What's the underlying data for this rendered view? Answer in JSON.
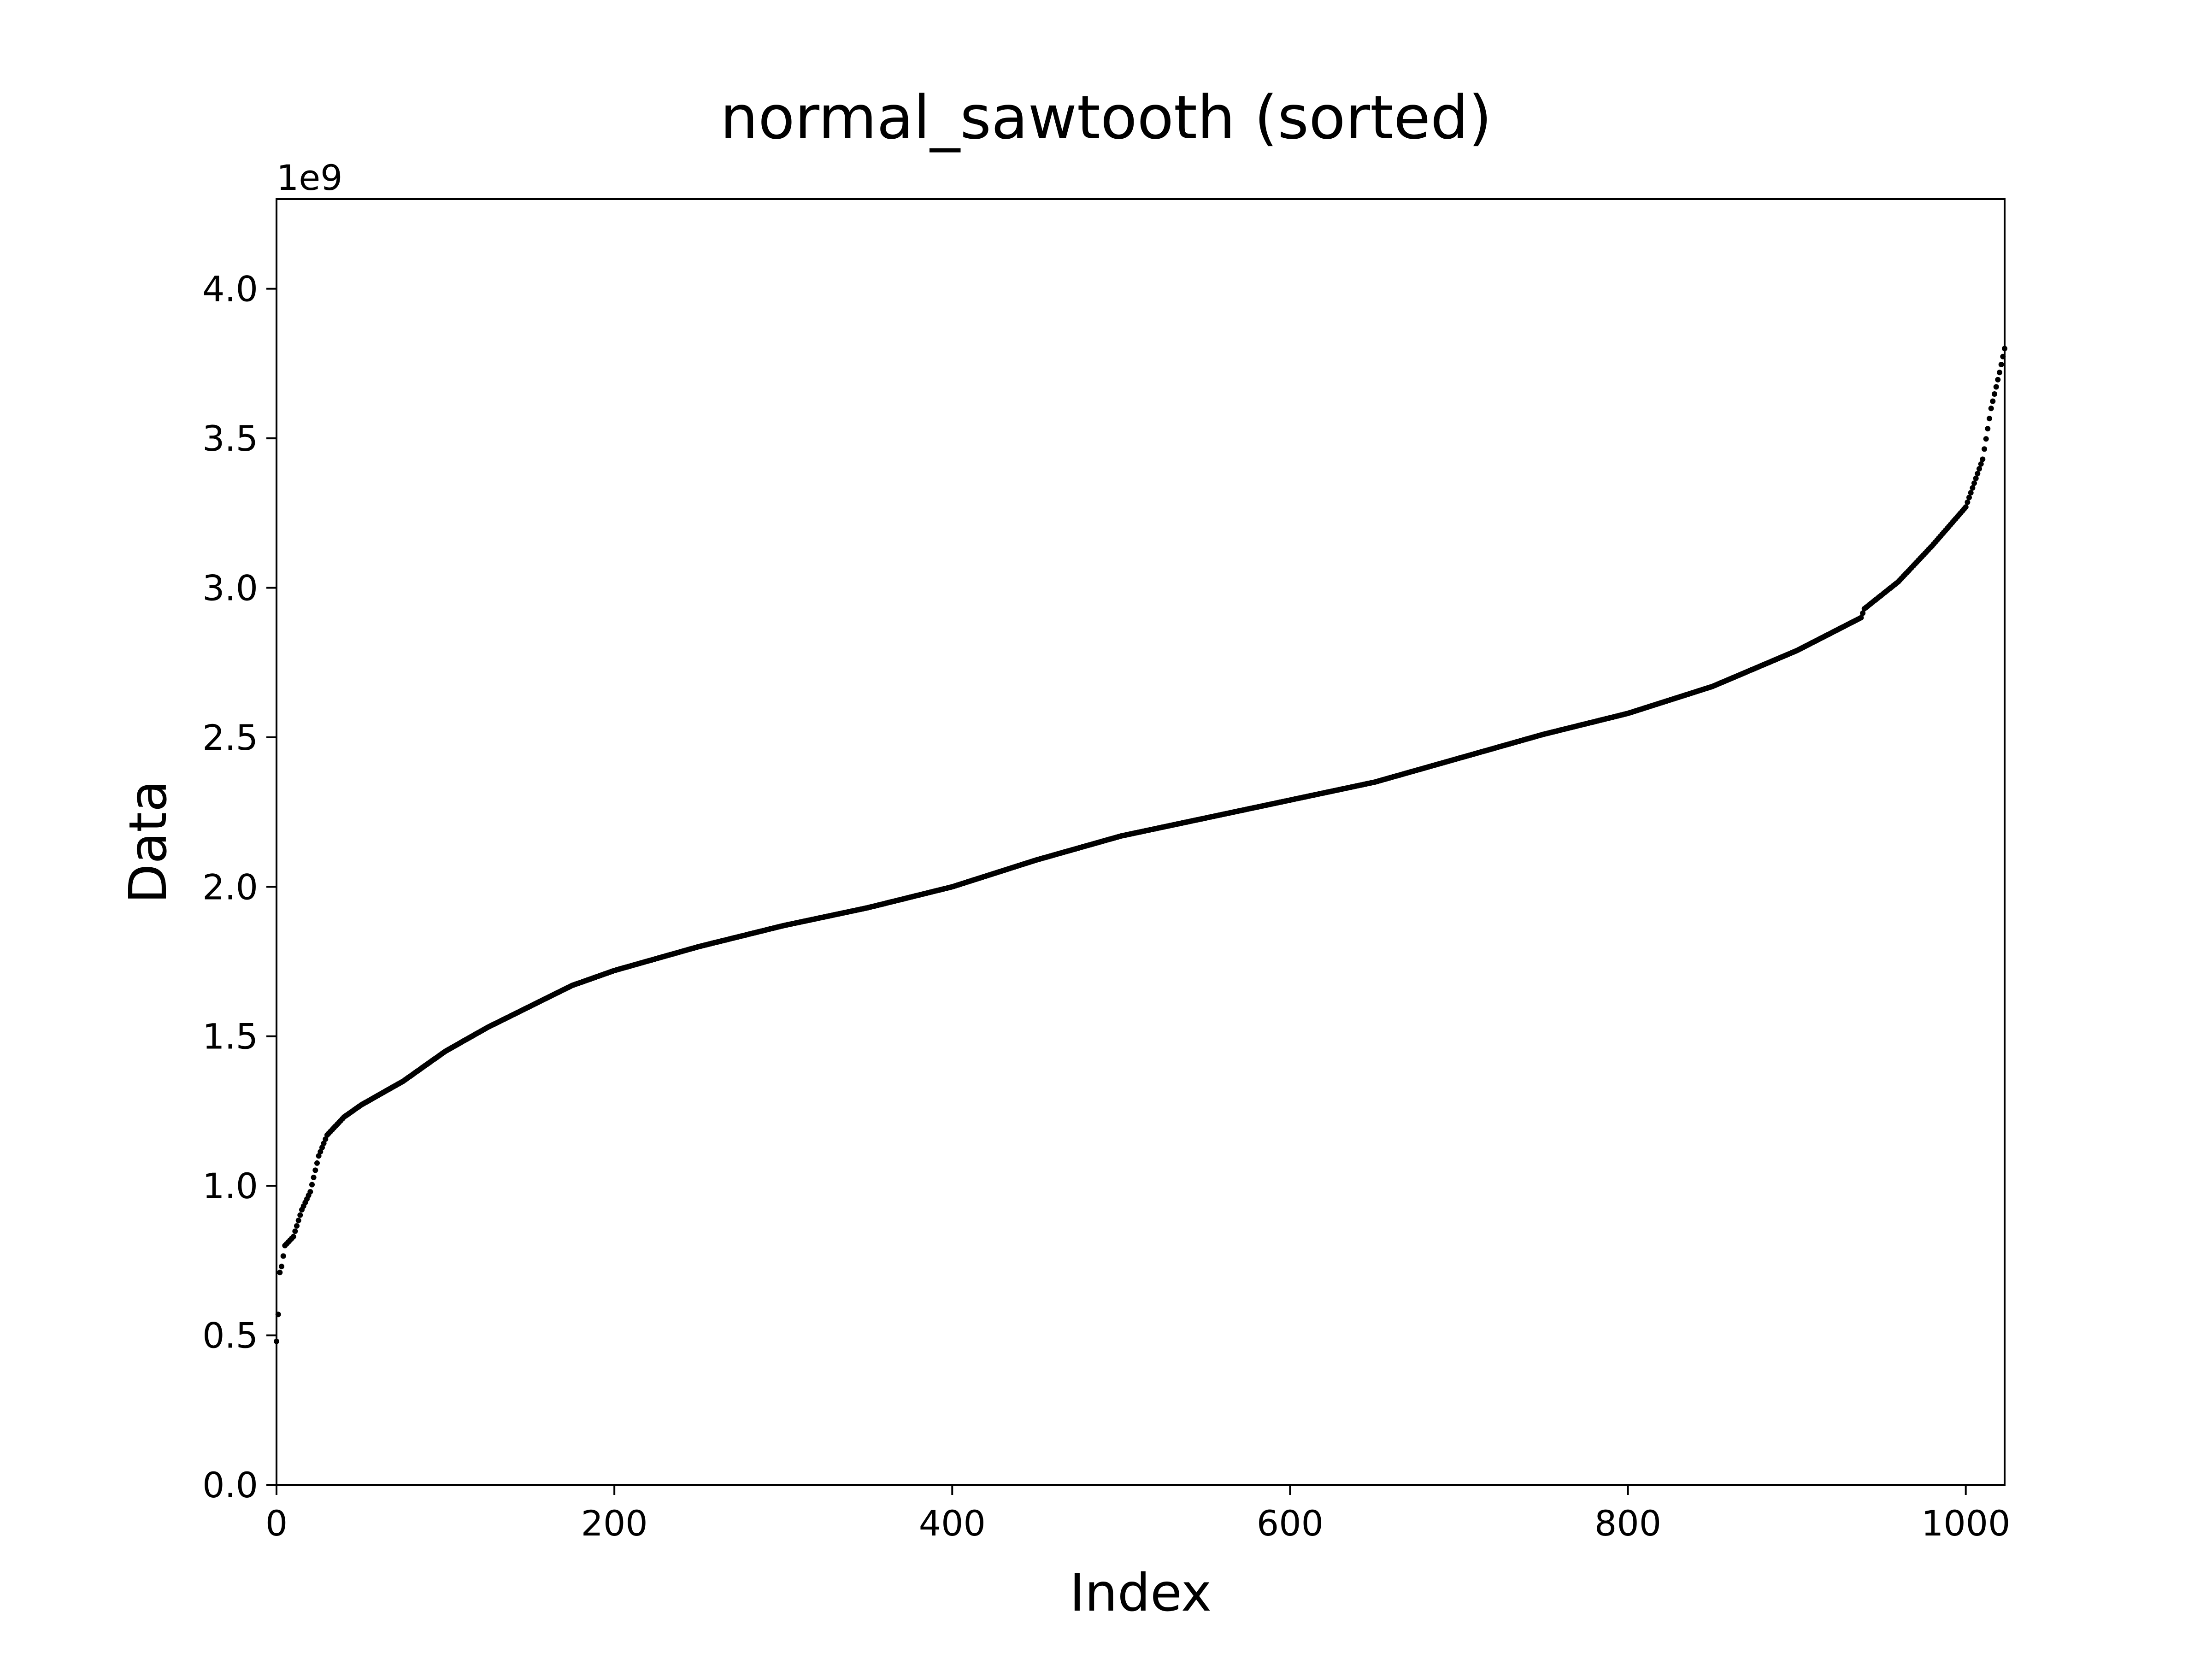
{
  "chart_data": {
    "type": "scatter",
    "title": "normal_sawtooth (sorted)",
    "xlabel": "Index",
    "ylabel": "Data",
    "y_offset_label": "1e9",
    "xlim": [
      0,
      1023
    ],
    "ylim": [
      0,
      4.3
    ],
    "xticks": [
      0,
      200,
      400,
      600,
      800,
      1000
    ],
    "yticks": [
      0.0,
      0.5,
      1.0,
      1.5,
      2.0,
      2.5,
      3.0,
      3.5,
      4.0
    ],
    "xtick_labels": [
      "0",
      "200",
      "400",
      "600",
      "800",
      "1000"
    ],
    "ytick_labels": [
      "0.0",
      "0.5",
      "1.0",
      "1.5",
      "2.0",
      "2.5",
      "3.0",
      "3.5",
      "4.0"
    ],
    "grid": false,
    "marker_color": "#000000",
    "y_unit_multiplier": 1000000000,
    "curve_points": [
      [
        0,
        0.48
      ],
      [
        1,
        0.57
      ],
      [
        2,
        0.71
      ],
      [
        3,
        0.73
      ],
      [
        5,
        0.8
      ],
      [
        10,
        0.83
      ],
      [
        15,
        0.92
      ],
      [
        20,
        0.98
      ],
      [
        25,
        1.1
      ],
      [
        30,
        1.17
      ],
      [
        40,
        1.23
      ],
      [
        50,
        1.27
      ],
      [
        75,
        1.35
      ],
      [
        100,
        1.45
      ],
      [
        125,
        1.53
      ],
      [
        150,
        1.6
      ],
      [
        175,
        1.67
      ],
      [
        200,
        1.72
      ],
      [
        250,
        1.8
      ],
      [
        300,
        1.87
      ],
      [
        350,
        1.93
      ],
      [
        400,
        2.0
      ],
      [
        450,
        2.09
      ],
      [
        500,
        2.17
      ],
      [
        550,
        2.23
      ],
      [
        600,
        2.29
      ],
      [
        650,
        2.35
      ],
      [
        700,
        2.43
      ],
      [
        750,
        2.51
      ],
      [
        800,
        2.58
      ],
      [
        850,
        2.67
      ],
      [
        900,
        2.79
      ],
      [
        938,
        2.9
      ],
      [
        940,
        2.93
      ],
      [
        960,
        3.02
      ],
      [
        980,
        3.14
      ],
      [
        1000,
        3.27
      ],
      [
        1010,
        3.43
      ],
      [
        1015,
        3.6
      ],
      [
        1020,
        3.72
      ],
      [
        1023,
        3.8
      ]
    ],
    "n_points": 1024
  }
}
